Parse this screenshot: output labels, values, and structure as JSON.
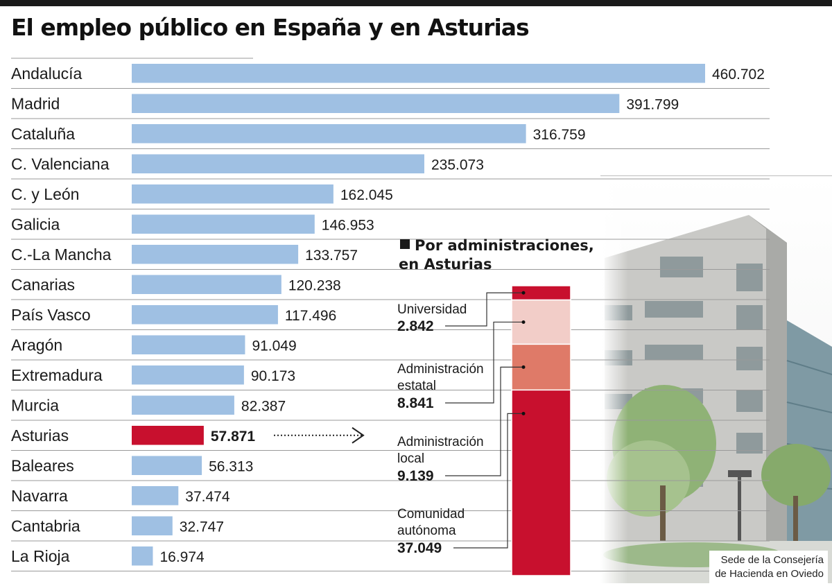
{
  "title": "El empleo público en España y en Asturias",
  "colors": {
    "bar": "#9fc0e3",
    "highlight": "#c8102e",
    "separator": "#9a9a9a",
    "text": "#1a1a1a",
    "segments": [
      "#c8102e",
      "#f2cdc8",
      "#df7a68",
      "#c8102e"
    ]
  },
  "chart_data": [
    {
      "type": "bar",
      "orientation": "horizontal",
      "categories": [
        "Andalucía",
        "Madrid",
        "Cataluña",
        "C. Valenciana",
        "C. y León",
        "Galicia",
        "C.-La Mancha",
        "Canarias",
        "País Vasco",
        "Aragón",
        "Extremadura",
        "Murcia",
        "Asturias",
        "Baleares",
        "Navarra",
        "Cantabria",
        "La Rioja"
      ],
      "values": [
        460702,
        391799,
        316759,
        235073,
        162045,
        146953,
        133757,
        120238,
        117496,
        91049,
        90173,
        82387,
        57871,
        56313,
        37474,
        32747,
        16974
      ],
      "value_labels": [
        "460.702",
        "391.799",
        "316.759",
        "235.073",
        "162.045",
        "146.953",
        "133.757",
        "120.238",
        "117.496",
        "91.049",
        "90.173",
        "82.387",
        "57.871",
        "56.313",
        "37.474",
        "32.747",
        "16.974"
      ],
      "highlight": "Asturias",
      "title": "El empleo público en España y en Asturias"
    },
    {
      "type": "bar",
      "orientation": "stacked-vertical",
      "title": "Por administraciones, en Asturias",
      "segments": [
        {
          "lines": [
            "Universidad"
          ],
          "value": 2842,
          "value_label": "2.842"
        },
        {
          "lines": [
            "Administración",
            "estatal"
          ],
          "value": 8841,
          "value_label": "8.841"
        },
        {
          "lines": [
            "Administración",
            "local"
          ],
          "value": 9139,
          "value_label": "9.139"
        },
        {
          "lines": [
            "Comunidad",
            "autónoma"
          ],
          "value": 37049,
          "value_label": "37.049"
        }
      ]
    }
  ],
  "photo": {
    "caption_line1": "Sede de la Consejería",
    "caption_line2": "de Hacienda en Oviedo"
  }
}
